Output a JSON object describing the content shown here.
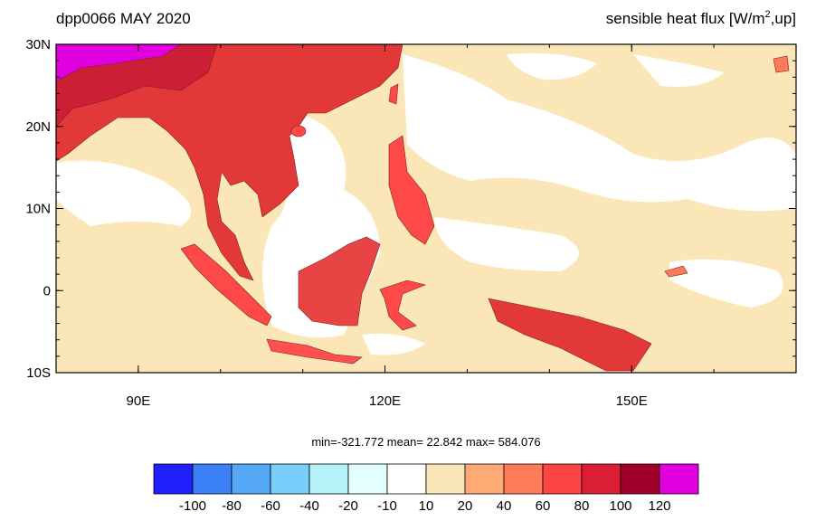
{
  "map": {
    "title_left": "dpp0066 MAY 2020",
    "title_right": {
      "prefix": "sensible heat flux [W/m",
      "sup": "2",
      "suffix": ",up]"
    },
    "lat_labels": [
      "30N",
      "20N",
      "10N",
      "0",
      "10S"
    ],
    "lon_labels": [
      "90E",
      "120E",
      "150E"
    ],
    "stats": "min=-321.772  mean=  22.842  max= 584.076",
    "colorbar": {
      "colors": [
        "#2020fc",
        "#3c80f8",
        "#55a8f5",
        "#78cffa",
        "#b6f2fa",
        "#e2fefe",
        "#ffffff",
        "#fae6b6",
        "#ffaa74",
        "#ff7a58",
        "#ff4444",
        "#dc1e34",
        "#a0002a",
        "#e000e0"
      ],
      "levels": [
        -100,
        -80,
        -60,
        -40,
        -20,
        -10,
        10,
        20,
        40,
        60,
        80,
        100,
        120
      ]
    }
  }
}
